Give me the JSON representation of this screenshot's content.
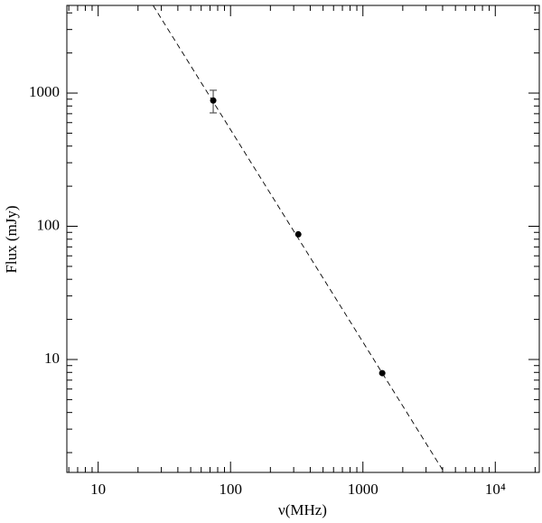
{
  "chart_data": {
    "type": "scatter",
    "xlabel": "ν(MHz)",
    "ylabel": "Flux (mJy)",
    "xscale": "log",
    "yscale": "log",
    "xlim": [
      5.8,
      21500
    ],
    "ylim": [
      1.42,
      4550
    ],
    "xticks": [
      10,
      100,
      1000,
      {
        "value": 10000,
        "label": "10⁴"
      }
    ],
    "yticks": [
      10,
      100,
      1000
    ],
    "xminorticks": [
      6,
      7,
      8,
      9,
      20,
      30,
      40,
      50,
      60,
      70,
      80,
      90,
      200,
      300,
      400,
      500,
      600,
      700,
      800,
      900,
      2000,
      3000,
      4000,
      5000,
      6000,
      7000,
      8000,
      9000,
      20000
    ],
    "yminorticks": [
      2,
      3,
      4,
      5,
      6,
      7,
      8,
      9,
      20,
      30,
      40,
      50,
      60,
      70,
      80,
      90,
      200,
      300,
      400,
      500,
      600,
      700,
      800,
      900,
      2000,
      3000,
      4000
    ],
    "color": "#000000",
    "points": {
      "x": [
        74,
        325,
        1400
      ],
      "values": [
        880,
        87,
        7.9
      ],
      "errors": [
        170,
        null,
        null
      ]
    },
    "fit": {
      "x": [
        26,
        4110
      ],
      "values": [
        4550,
        1.42
      ],
      "color": "#000000",
      "dash": true
    }
  }
}
